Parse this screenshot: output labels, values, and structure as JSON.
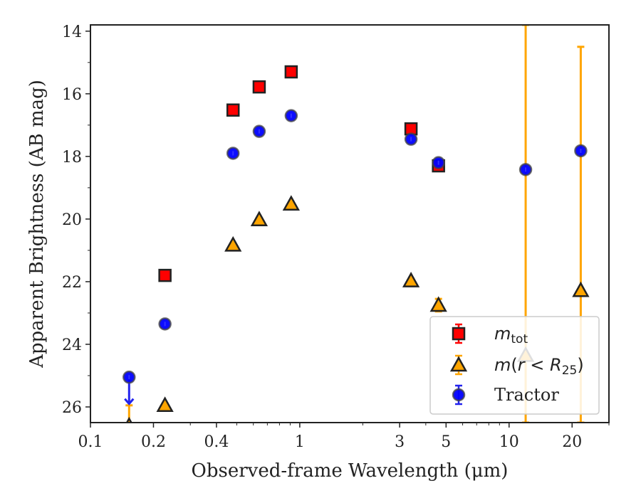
{
  "chart_data": {
    "type": "scatter",
    "title": "",
    "xlabel": "Observed-frame Wavelength (μm)",
    "ylabel": "Apparent Brightness (AB mag)",
    "xscale": "log",
    "xlim": [
      0.1,
      30
    ],
    "ylim": [
      26.5,
      13.8
    ],
    "x_tick_labels": [
      {
        "value": 0.1,
        "label": "0.1"
      },
      {
        "value": 0.2,
        "label": "0.2"
      },
      {
        "value": 0.4,
        "label": "0.4"
      },
      {
        "value": 1,
        "label": "1"
      },
      {
        "value": 3,
        "label": "3"
      },
      {
        "value": 5,
        "label": "5"
      },
      {
        "value": 10,
        "label": "10"
      },
      {
        "value": 20,
        "label": "20"
      }
    ],
    "y_ticks": [
      14,
      16,
      18,
      20,
      22,
      24,
      26
    ],
    "grid": false,
    "legend_position": "lower-right",
    "series": [
      {
        "name": "m_tot",
        "legend_label": {
          "base": "m",
          "sub": "tot"
        },
        "marker": "square",
        "fill": "#ff0000",
        "edge": "#222222",
        "error_color": "#ff0000",
        "points": [
          {
            "x": 0.227,
            "y": 21.8
          },
          {
            "x": 0.48,
            "y": 16.52
          },
          {
            "x": 0.64,
            "y": 15.78
          },
          {
            "x": 0.91,
            "y": 15.3
          },
          {
            "x": 3.4,
            "y": 17.12
          },
          {
            "x": 4.6,
            "y": 18.3
          }
        ]
      },
      {
        "name": "m(r < R_25)",
        "legend_label": {
          "pre": "m(",
          "mid": "r",
          "op": " < ",
          "base": "R",
          "sub": "25",
          "post": ")"
        },
        "marker": "triangle",
        "fill": "#ffa500",
        "edge": "#222222",
        "error_color": "#ffa500",
        "points": [
          {
            "x": 0.153,
            "y": 26.6,
            "err_low": 26.6,
            "err_high": 25.95
          },
          {
            "x": 0.227,
            "y": 25.95
          },
          {
            "x": 0.48,
            "y": 20.83
          },
          {
            "x": 0.64,
            "y": 20.02
          },
          {
            "x": 0.91,
            "y": 19.52
          },
          {
            "x": 3.4,
            "y": 21.97
          },
          {
            "x": 4.6,
            "y": 22.75,
            "err_low": 22.95,
            "err_high": 22.55
          },
          {
            "x": 12.0,
            "y": 24.35,
            "err_low": 26.5,
            "err_high": 13.8
          },
          {
            "x": 22.0,
            "y": 22.28,
            "err_low": 26.5,
            "err_high": 14.5
          }
        ]
      },
      {
        "name": "Tractor",
        "legend_label": {
          "base": "Tractor"
        },
        "marker": "circle",
        "fill": "#0000ff",
        "edge": "#444444",
        "error_color": "#2222ee",
        "points": [
          {
            "x": 0.153,
            "y": 25.05,
            "upper_limit_to": 25.9
          },
          {
            "x": 0.227,
            "y": 23.35
          },
          {
            "x": 0.48,
            "y": 17.9
          },
          {
            "x": 0.64,
            "y": 17.2
          },
          {
            "x": 0.91,
            "y": 16.7
          },
          {
            "x": 3.4,
            "y": 17.45
          },
          {
            "x": 4.6,
            "y": 18.2
          },
          {
            "x": 12.0,
            "y": 18.42
          },
          {
            "x": 22.0,
            "y": 17.82
          }
        ]
      }
    ]
  }
}
